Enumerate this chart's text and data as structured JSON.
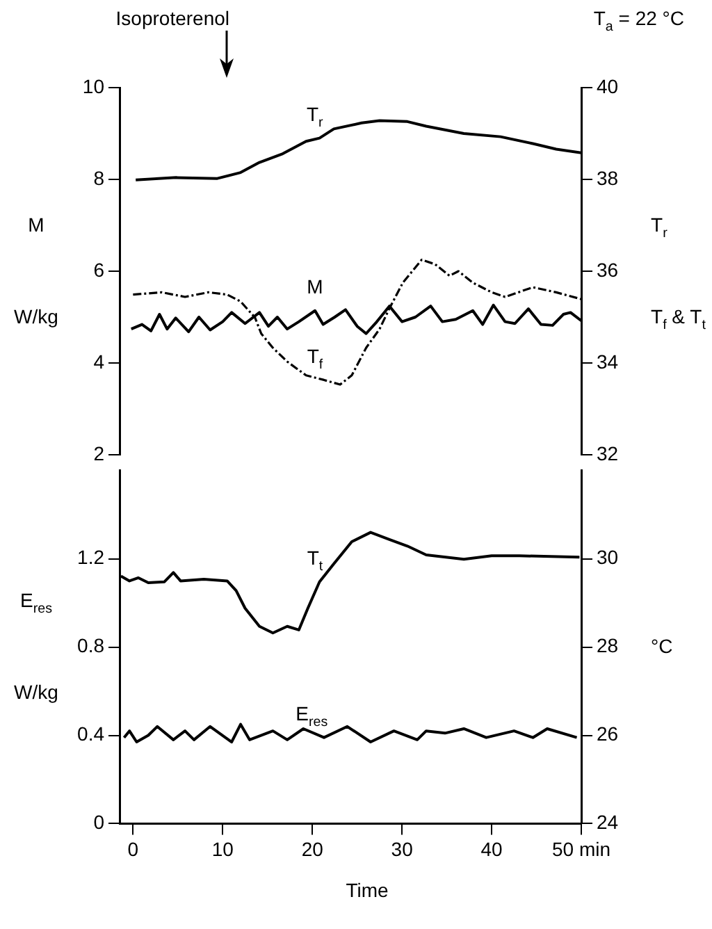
{
  "chart_data": [
    {
      "type": "line",
      "ylabel": "M\n\nW/kg",
      "y2label": "T$_{r}$\n\nT$_{f}$ & T$_{t}$",
      "annotations": [
        "Isoproterenol",
        "T$_{a}$ = 22 °C"
      ],
      "xlim": [
        -1.5,
        50
      ],
      "ylim": [
        2,
        10
      ],
      "yticks": [
        2,
        4,
        6,
        8,
        10
      ],
      "y2lim": [
        32,
        40
      ],
      "y2ticks": [
        32,
        34,
        36,
        38,
        40
      ],
      "tick_labels": "y",
      "series": [
        {
          "name": "T$_{r}$",
          "color": "#000000",
          "axis": "y2",
          "x": [
            0.3,
            4.8,
            9.4,
            12,
            14.1,
            16.7,
            19.3,
            20.8,
            22.4,
            25.5,
            27.5,
            30.6,
            32.7,
            36.9,
            41,
            44.6,
            47.2,
            50
          ],
          "values": [
            37.99,
            38.04,
            38.02,
            38.15,
            38.37,
            38.56,
            38.83,
            38.9,
            39.1,
            39.23,
            39.28,
            39.26,
            39.16,
            39.0,
            38.93,
            38.78,
            38.66,
            38.58
          ]
        },
        {
          "name": "M",
          "color": "#000000",
          "x": [
            -0.2,
            1,
            2,
            2.95,
            3.8,
            4.76,
            6.2,
            7.35,
            8.6,
            10,
            11,
            12.5,
            14.1,
            15.1,
            16.1,
            17.2,
            18.5,
            20.3,
            21.2,
            22.5,
            23.7,
            25,
            26,
            27.2,
            28.6,
            30,
            31.5,
            33.2,
            34.5,
            36,
            37.9,
            39,
            40.2,
            41.5,
            42.6,
            44.1,
            45.5,
            46.8,
            48,
            48.8,
            50
          ],
          "values": [
            4.74,
            4.84,
            4.7,
            5.06,
            4.74,
            4.98,
            4.68,
            5.0,
            4.72,
            4.9,
            5.1,
            4.86,
            5.1,
            4.8,
            5.0,
            4.74,
            4.9,
            5.14,
            4.84,
            5.0,
            5.16,
            4.8,
            4.64,
            4.9,
            5.24,
            4.9,
            5.0,
            5.24,
            4.9,
            4.95,
            5.14,
            4.84,
            5.26,
            4.9,
            4.86,
            5.18,
            4.84,
            4.82,
            5.06,
            5.1,
            4.92
          ]
        },
        {
          "name": "T$_{f}$",
          "color": "#000000",
          "axis": "y2",
          "line_style": "dashed",
          "x": [
            0,
            3.2,
            5.8,
            8.4,
            10.5,
            12,
            13.6,
            14.3,
            15.6,
            17.2,
            19.3,
            21.3,
            23.1,
            24.4,
            26,
            27.5,
            28.6,
            30.1,
            32.2,
            33.7,
            35.3,
            36.3,
            37.9,
            40,
            41.5,
            44.6,
            47.2,
            50
          ],
          "values": [
            35.49,
            35.54,
            35.44,
            35.54,
            35.49,
            35.34,
            34.99,
            34.64,
            34.33,
            34.03,
            33.73,
            33.63,
            33.53,
            33.73,
            34.33,
            34.74,
            35.19,
            35.75,
            36.25,
            36.15,
            35.9,
            36.0,
            35.75,
            35.54,
            35.44,
            35.65,
            35.54,
            35.39
          ]
        }
      ]
    },
    {
      "type": "line",
      "xlabel": "Time",
      "ylabel": "E$_{res}$\n\nW/kg",
      "y2label": "°C",
      "xlim": [
        -1.5,
        50
      ],
      "xticks": [
        0,
        10,
        20,
        30,
        40,
        {
          "value": 50,
          "label": "50 min"
        }
      ],
      "ylim": [
        0,
        1.6
      ],
      "yticks": [
        0,
        0.4,
        0.8,
        1.2
      ],
      "y2lim": [
        24,
        32
      ],
      "y2ticks": [
        24,
        26,
        28,
        30
      ],
      "series": [
        {
          "name": "T$_{t}$",
          "color": "#000000",
          "axis": "y2",
          "x": [
            -1.35,
            -0.4,
            0.6,
            1.7,
            3.5,
            4.5,
            5.3,
            7.9,
            10.5,
            11.5,
            12.5,
            14.1,
            15.6,
            17.2,
            18.5,
            19.5,
            20.8,
            22.4,
            24.4,
            26.5,
            28.6,
            30.6,
            32.7,
            36.9,
            40,
            43.1,
            49.8
          ],
          "values": [
            29.61,
            29.5,
            29.57,
            29.46,
            29.48,
            29.69,
            29.5,
            29.54,
            29.5,
            29.28,
            28.88,
            28.47,
            28.32,
            28.47,
            28.39,
            28.88,
            29.48,
            29.89,
            30.39,
            30.6,
            30.44,
            30.29,
            30.09,
            29.99,
            30.07,
            30.07,
            30.04
          ]
        },
        {
          "name": "E$_{res}$",
          "color": "#000000",
          "x": [
            -1,
            -0.4,
            0.4,
            1.7,
            2.7,
            4.5,
            5.8,
            6.8,
            8.6,
            11,
            12,
            13,
            15.6,
            17.2,
            19,
            21.3,
            23.9,
            26.5,
            29.1,
            31.7,
            32.7,
            34.8,
            36.9,
            39.4,
            42.5,
            44.6,
            46.2,
            49.5
          ],
          "values": [
            0.39,
            0.42,
            0.37,
            0.4,
            0.44,
            0.38,
            0.42,
            0.38,
            0.44,
            0.37,
            0.45,
            0.38,
            0.42,
            0.38,
            0.43,
            0.39,
            0.44,
            0.37,
            0.42,
            0.38,
            0.42,
            0.41,
            0.43,
            0.39,
            0.42,
            0.39,
            0.43,
            0.39
          ]
        }
      ]
    }
  ]
}
